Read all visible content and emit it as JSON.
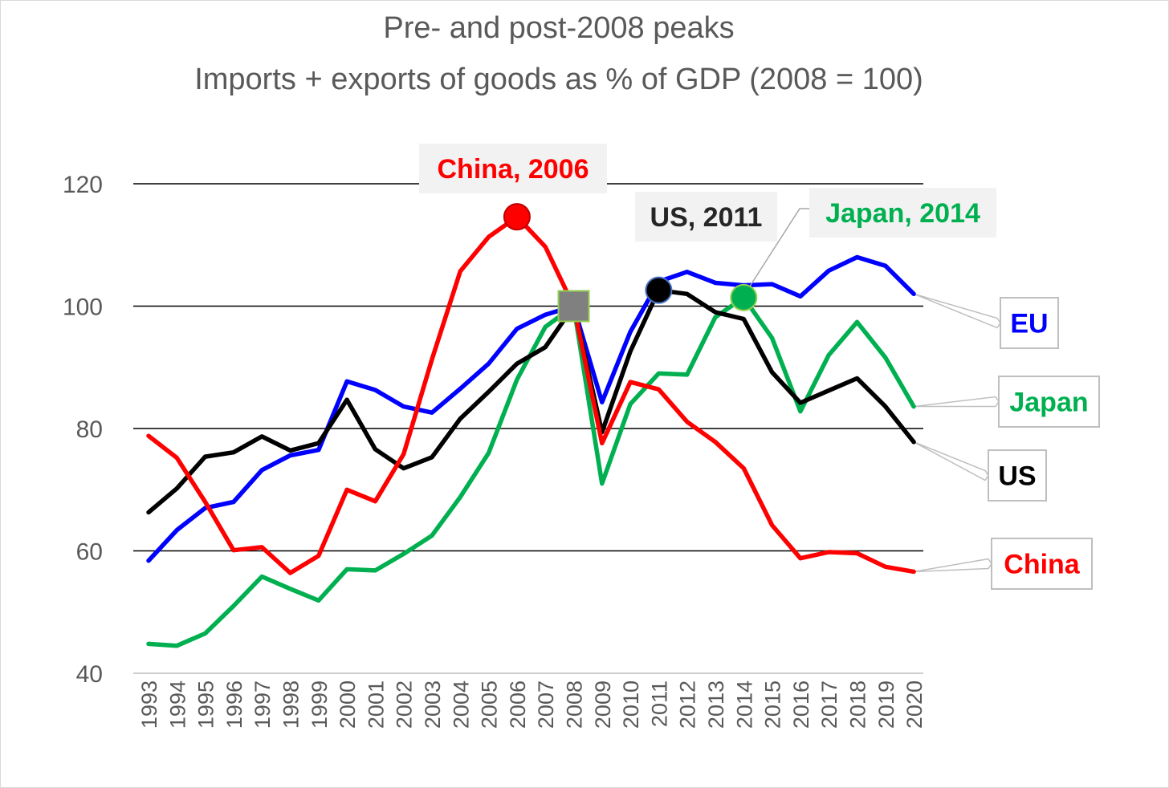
{
  "title_line1": "Pre- and post-2008 peaks",
  "title_line2": "Imports + exports of goods as % of GDP (2008 = 100)",
  "chart_data": {
    "type": "line",
    "title": "Pre- and post-2008 peaks — Imports + exports of goods as % of GDP (2008 = 100)",
    "xlabel": "",
    "ylabel": "",
    "ylim": [
      40,
      120
    ],
    "yticks": [
      40,
      60,
      80,
      100,
      120
    ],
    "grid": true,
    "categories": [
      "1993",
      "1994",
      "1995",
      "1996",
      "1997",
      "1998",
      "1999",
      "2000",
      "2001",
      "2002",
      "2003",
      "2004",
      "2005",
      "2006",
      "2007",
      "2008",
      "2009",
      "2010",
      "2011",
      "2012",
      "2013",
      "2014",
      "2015",
      "2016",
      "2017",
      "2018",
      "2019",
      "2020"
    ],
    "series": [
      {
        "name": "EU",
        "label": "EU",
        "color": "#0000ff",
        "values": [
          58.4,
          63.4,
          67.0,
          68.0,
          73.2,
          75.6,
          76.5,
          87.7,
          86.3,
          83.6,
          82.6,
          86.5,
          90.6,
          96.3,
          98.6,
          100,
          84.3,
          95.8,
          104.0,
          105.6,
          103.8,
          103.4,
          103.6,
          101.6,
          105.8,
          108.0,
          106.6,
          102.0
        ]
      },
      {
        "name": "Japan",
        "label": "Japan",
        "color": "#00b050",
        "values": [
          44.8,
          44.5,
          46.5,
          51.0,
          55.8,
          53.8,
          51.9,
          57.0,
          56.8,
          59.5,
          62.5,
          68.8,
          76.0,
          88.0,
          96.6,
          100,
          71.0,
          84.0,
          89.0,
          88.8,
          98.2,
          101.4,
          94.8,
          82.8,
          92.0,
          97.4,
          91.6,
          83.6
        ]
      },
      {
        "name": "US",
        "label": "US",
        "color": "#000000",
        "values": [
          66.3,
          70.2,
          75.4,
          76.1,
          78.7,
          76.4,
          77.6,
          84.7,
          76.6,
          73.5,
          75.3,
          81.6,
          86.0,
          90.6,
          93.3,
          100,
          79.4,
          92.6,
          102.6,
          102.0,
          99.0,
          97.9,
          89.2,
          84.2,
          86.2,
          88.2,
          83.6,
          77.8
        ]
      },
      {
        "name": "China",
        "label": "China",
        "color": "#ff0000",
        "values": [
          78.8,
          75.2,
          68.0,
          60.1,
          60.6,
          56.4,
          59.2,
          70.0,
          68.1,
          75.8,
          91.3,
          105.7,
          111.3,
          114.6,
          109.7,
          100,
          77.6,
          87.6,
          86.4,
          81.1,
          77.8,
          73.5,
          64.2,
          58.8,
          59.8,
          59.6,
          57.4,
          56.6
        ]
      }
    ],
    "annotations": [
      {
        "text": "China, 2006",
        "year": "2006",
        "value": 114.6,
        "color": "#ff0000",
        "marker_color": "#ff0000"
      },
      {
        "text": "US, 2011",
        "year": "2011",
        "value": 102.6,
        "color": "#262626",
        "marker_color": "#000000"
      },
      {
        "text": "Japan, 2014",
        "year": "2014",
        "value": 101.4,
        "color": "#00b050",
        "marker_color": "#00b050"
      }
    ],
    "base_marker": {
      "year": "2008",
      "value": 100,
      "color": "#808080"
    }
  }
}
